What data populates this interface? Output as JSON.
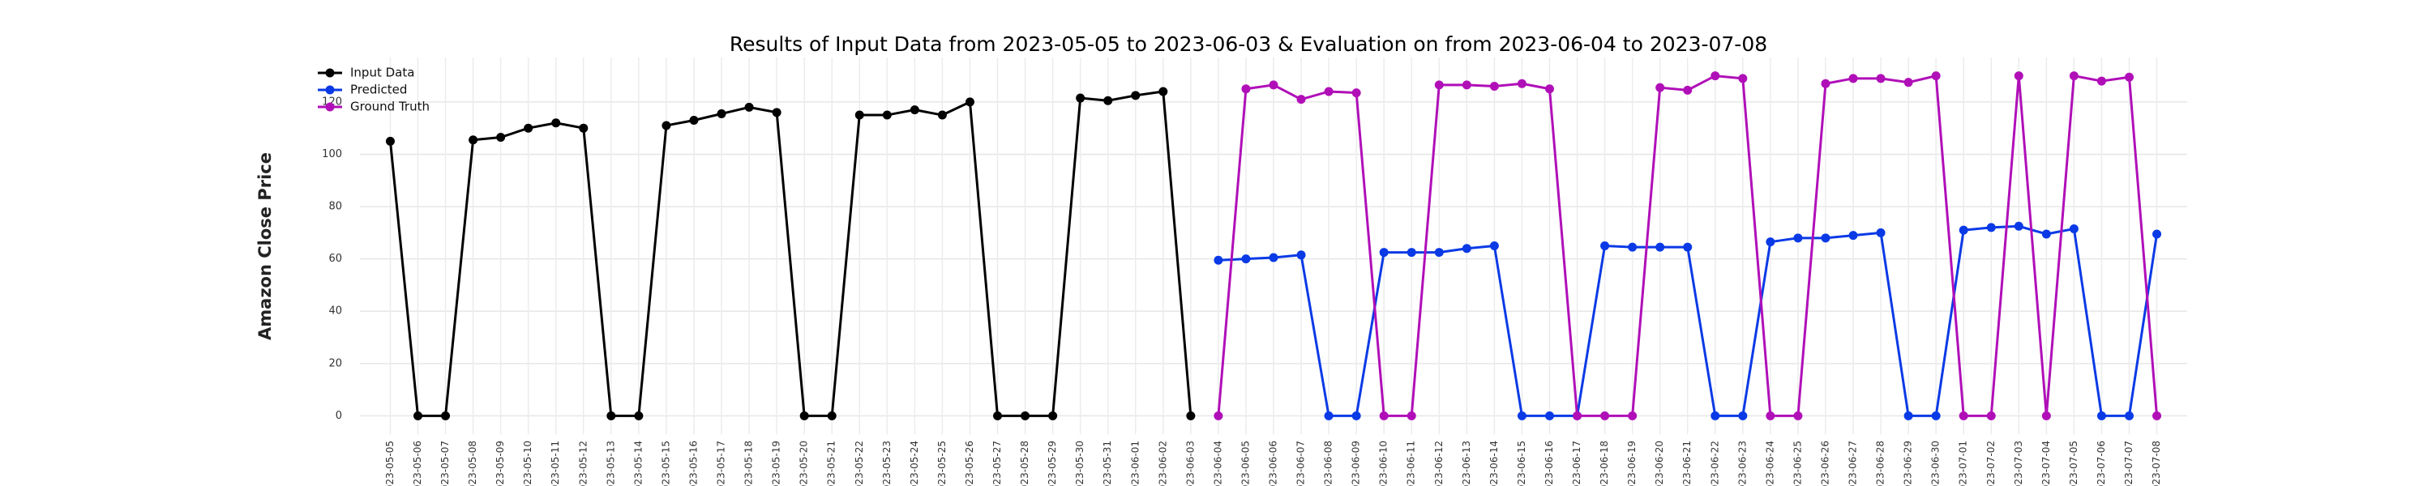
{
  "chart_data": {
    "type": "line",
    "title": "Results of Input Data from 2023-05-05 to 2023-06-03 & Evaluation on from 2023-06-04 to 2023-07-08",
    "y_label": "Amazon Close Price",
    "categories": [
      "2023-05-05",
      "2023-05-06",
      "2023-05-07",
      "2023-05-08",
      "2023-05-09",
      "2023-05-10",
      "2023-05-11",
      "2023-05-12",
      "2023-05-13",
      "2023-05-14",
      "2023-05-15",
      "2023-05-16",
      "2023-05-17",
      "2023-05-18",
      "2023-05-19",
      "2023-05-20",
      "2023-05-21",
      "2023-05-22",
      "2023-05-23",
      "2023-05-24",
      "2023-05-25",
      "2023-05-26",
      "2023-05-27",
      "2023-05-28",
      "2023-05-29",
      "2023-05-30",
      "2023-05-31",
      "2023-06-01",
      "2023-06-02",
      "2023-06-03",
      "2023-06-04",
      "2023-06-05",
      "2023-06-06",
      "2023-06-07",
      "2023-06-08",
      "2023-06-09",
      "2023-06-10",
      "2023-06-11",
      "2023-06-12",
      "2023-06-13",
      "2023-06-14",
      "2023-06-15",
      "2023-06-16",
      "2023-06-17",
      "2023-06-18",
      "2023-06-19",
      "2023-06-20",
      "2023-06-21",
      "2023-06-22",
      "2023-06-23",
      "2023-06-24",
      "2023-06-25",
      "2023-06-26",
      "2023-06-27",
      "2023-06-28",
      "2023-06-29",
      "2023-06-30",
      "2023-07-01",
      "2023-07-02",
      "2023-07-03",
      "2023-07-04",
      "2023-07-05",
      "2023-07-06",
      "2023-07-07",
      "2023-07-08"
    ],
    "series": [
      {
        "name": "Input Data",
        "color": "#000000",
        "values": [
          105,
          0,
          0,
          105.5,
          106.5,
          110,
          112,
          110,
          0,
          0,
          111,
          113,
          115.5,
          118,
          116,
          0,
          0,
          115,
          115,
          117,
          115,
          120,
          0,
          0,
          0,
          121.5,
          120.5,
          122.5,
          124,
          0,
          null,
          null,
          null,
          null,
          null,
          null,
          null,
          null,
          null,
          null,
          null,
          null,
          null,
          null,
          null,
          null,
          null,
          null,
          null,
          null,
          null,
          null,
          null,
          null,
          null,
          null,
          null,
          null,
          null,
          null,
          null,
          null,
          null,
          null,
          null
        ]
      },
      {
        "name": "Predicted",
        "color": "#0a3ae6",
        "values": [
          null,
          null,
          null,
          null,
          null,
          null,
          null,
          null,
          null,
          null,
          null,
          null,
          null,
          null,
          null,
          null,
          null,
          null,
          null,
          null,
          null,
          null,
          null,
          null,
          null,
          null,
          null,
          null,
          null,
          null,
          59.5,
          60,
          60.5,
          61.5,
          0,
          0,
          62.5,
          62.5,
          62.5,
          64,
          65,
          0,
          0,
          0,
          65,
          64.5,
          64.5,
          64.5,
          0,
          0,
          66.5,
          68,
          68,
          69,
          70,
          0,
          0,
          71,
          72,
          72.5,
          69.5,
          71.5,
          0,
          0,
          69.5
        ]
      },
      {
        "name": "Ground Truth",
        "color": "#b00fb8",
        "values": [
          null,
          null,
          null,
          null,
          null,
          null,
          null,
          null,
          null,
          null,
          null,
          null,
          null,
          null,
          null,
          null,
          null,
          null,
          null,
          null,
          null,
          null,
          null,
          null,
          null,
          null,
          null,
          null,
          null,
          null,
          0,
          125,
          126.5,
          121,
          124,
          123.5,
          0,
          0,
          126.5,
          126.5,
          126,
          127,
          125,
          0,
          0,
          0,
          125.5,
          124.5,
          130,
          129,
          0,
          0,
          127,
          129,
          129,
          127.5,
          130,
          0,
          0,
          130,
          0,
          130,
          128,
          129.5,
          0
        ]
      }
    ],
    "ylim": [
      -7,
      137
    ],
    "yticks": [
      0,
      20,
      40,
      60,
      80,
      100,
      120
    ],
    "grid": true,
    "legend": "upper left"
  }
}
